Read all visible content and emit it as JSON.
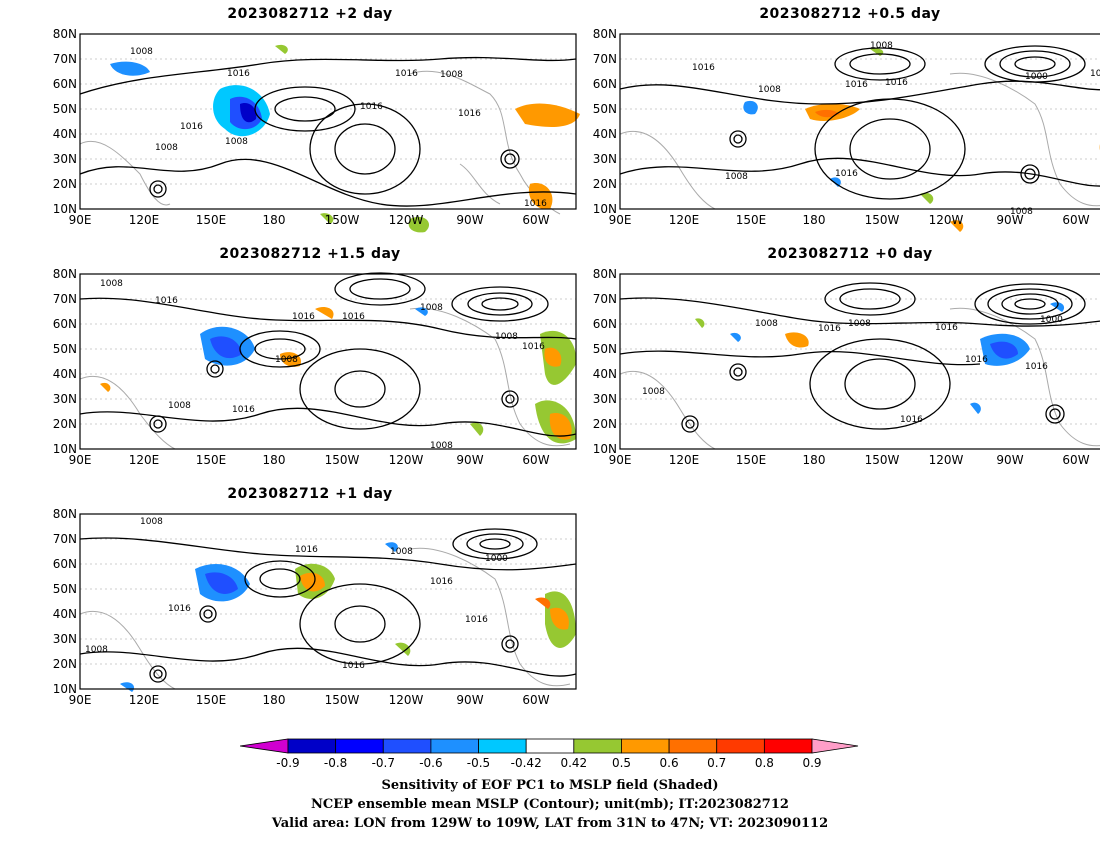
{
  "panels": [
    {
      "title": "2023082712 +2 day"
    },
    {
      "title": "2023082712 +0.5 day"
    },
    {
      "title": "2023082712 +1.5 day"
    },
    {
      "title": "2023082712 +0 day"
    },
    {
      "title": "2023082712 +1 day"
    }
  ],
  "axes": {
    "lat_labels": [
      "10N",
      "20N",
      "30N",
      "40N",
      "50N",
      "60N",
      "70N",
      "80N"
    ],
    "lon_labels": [
      "90E",
      "120E",
      "150E",
      "180",
      "150W",
      "120W",
      "90W",
      "60W"
    ]
  },
  "contour_labels": {
    "p1008": "1008",
    "p1016": "1016",
    "p1000": "1000"
  },
  "colorbar": {
    "ticks": [
      "-0.9",
      "-0.8",
      "-0.7",
      "-0.6",
      "-0.5",
      "-0.42",
      "0.42",
      "0.5",
      "0.6",
      "0.7",
      "0.8",
      "0.9"
    ],
    "colors": [
      "#d000d0",
      "#0000c8",
      "#0000ff",
      "#1f4fff",
      "#1e90ff",
      "#00c8ff",
      "#ffffff",
      "#96c832",
      "#ff9900",
      "#ff7000",
      "#ff3a00",
      "#ff0000",
      "#ff9ec8"
    ]
  },
  "caption": {
    "line1": "Sensitivity of EOF PC1 to MSLP field (Shaded)",
    "line2": "NCEP ensemble mean MSLP (Contour); unit(mb); IT:2023082712",
    "line3": "Valid area: LON from 129W to 109W, LAT from 31N to 47N; VT: 2023090112"
  }
}
